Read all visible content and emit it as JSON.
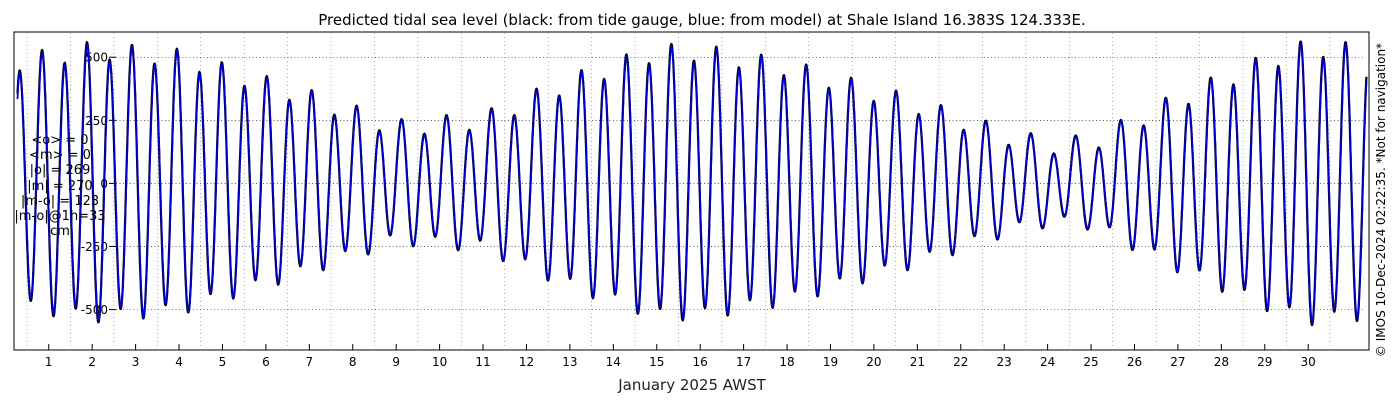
{
  "chart_data": {
    "type": "line",
    "title": "Predicted tidal sea level (black: from tide gauge, blue: from model) at Shale Island 16.383S 124.333E.",
    "xlabel": "January 2025 AWST",
    "ylabel": "",
    "xlim": [
      0.7,
      31.9
    ],
    "ylim": [
      -660,
      600
    ],
    "x_ticks": [
      1,
      2,
      3,
      4,
      5,
      6,
      7,
      8,
      9,
      10,
      11,
      12,
      13,
      14,
      15,
      16,
      17,
      18,
      19,
      20,
      21,
      22,
      23,
      24,
      25,
      26,
      27,
      28,
      29,
      30
    ],
    "x_tick_labels": [
      "1",
      "2",
      "3",
      "4",
      "5",
      "6",
      "7",
      "8",
      "9",
      "10",
      "11",
      "12",
      "13",
      "14",
      "15",
      "16",
      "17",
      "18",
      "19",
      "20",
      "21",
      "22",
      "23",
      "24",
      "25",
      "26",
      "27",
      "28",
      "29",
      "30"
    ],
    "y_ticks": [
      500,
      250,
      0,
      -250,
      -500
    ],
    "y_tick_labels": [
      "500",
      "250",
      "0",
      "-250",
      "-500"
    ],
    "grid": true,
    "series": [
      {
        "name": "black: from tide gauge",
        "color": "#000000",
        "amplitude_envelope": {
          "day": [
            0.8,
            2.5,
            4.5,
            7.5,
            9.5,
            11.5,
            13.5,
            15.5,
            16.5,
            18.5,
            21.5,
            23.5,
            24.5,
            25.5,
            27.5,
            29.5,
            30.5,
            31.8
          ],
          "amplitude_cm": [
            480,
            530,
            500,
            340,
            220,
            250,
            400,
            520,
            520,
            460,
            310,
            190,
            150,
            160,
            330,
            480,
            540,
            520
          ]
        }
      },
      {
        "name": "blue: from model",
        "color": "#0000cc",
        "amplitude_envelope": {
          "day": [
            0.8,
            2.5,
            4.5,
            7.5,
            9.5,
            11.5,
            13.5,
            15.5,
            16.5,
            18.5,
            21.5,
            23.5,
            24.5,
            25.5,
            27.5,
            29.5,
            30.5,
            31.8
          ],
          "amplitude_cm": [
            470,
            520,
            495,
            335,
            215,
            245,
            395,
            510,
            510,
            455,
            305,
            185,
            145,
            155,
            325,
            470,
            530,
            510
          ]
        }
      }
    ],
    "semidiurnal_period_days": 0.5175,
    "diurnal_inequality_cm": 40
  },
  "stats": {
    "lines": [
      "<o> = 0",
      "<m> = 0",
      "|o| = 269",
      "|m| = 270",
      "|m-o| = 123",
      "|m-o|@1h=33",
      "cm"
    ]
  },
  "side_note": "© IMOS 10-Dec-2024 02:22:35. *Not for navigation*"
}
